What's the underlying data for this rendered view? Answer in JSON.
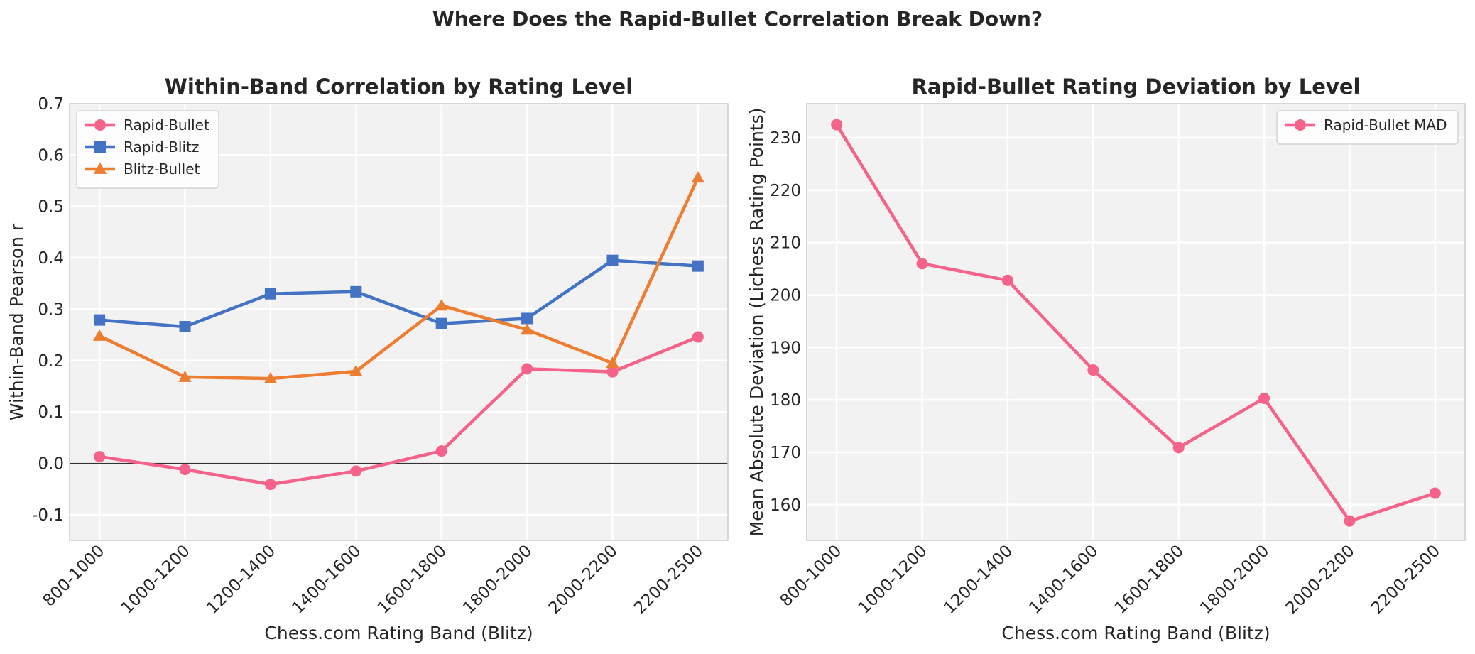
{
  "suptitle": "Where Does the Rapid-Bullet Correlation Break Down?",
  "chart_data": [
    {
      "type": "line",
      "title": "Within-Band Correlation by Rating Level",
      "xlabel": "Chess.com Rating Band (Blitz)",
      "ylabel": "Within-Band Pearson r",
      "categories": [
        "800-1000",
        "1000-1200",
        "1200-1400",
        "1400-1600",
        "1600-1800",
        "1800-2000",
        "2000-2200",
        "2200-2500"
      ],
      "ylim": [
        -0.15,
        0.7
      ],
      "yticks": [
        -0.1,
        0.0,
        0.1,
        0.2,
        0.3,
        0.4,
        0.5,
        0.6,
        0.7
      ],
      "ytick_labels": [
        "-0.1",
        "0.0",
        "0.1",
        "0.2",
        "0.3",
        "0.4",
        "0.5",
        "0.6",
        "0.7"
      ],
      "grid": true,
      "zero_line": true,
      "legend_position": "top-left",
      "series": [
        {
          "name": "Rapid-Bullet",
          "color": "#f5628a",
          "marker": "circle",
          "values": [
            0.013,
            -0.012,
            -0.041,
            -0.015,
            0.024,
            0.184,
            0.178,
            0.246
          ]
        },
        {
          "name": "Rapid-Blitz",
          "color": "#4472c4",
          "marker": "square",
          "values": [
            0.279,
            0.266,
            0.33,
            0.334,
            0.272,
            0.282,
            0.395,
            0.384
          ]
        },
        {
          "name": "Blitz-Bullet",
          "color": "#ed7d31",
          "marker": "triangle",
          "values": [
            0.248,
            0.168,
            0.165,
            0.179,
            0.307,
            0.26,
            0.195,
            0.556
          ]
        }
      ]
    },
    {
      "type": "line",
      "title": "Rapid-Bullet Rating Deviation by Level",
      "xlabel": "Chess.com Rating Band (Blitz)",
      "ylabel": "Mean Absolute Deviation (Lichess Rating Points)",
      "categories": [
        "800-1000",
        "1000-1200",
        "1200-1400",
        "1400-1600",
        "1600-1800",
        "1800-2000",
        "2000-2200",
        "2200-2500"
      ],
      "ylim": [
        153.2,
        236.5
      ],
      "yticks": [
        160,
        170,
        180,
        190,
        200,
        210,
        220,
        230
      ],
      "ytick_labels": [
        "160",
        "170",
        "180",
        "190",
        "200",
        "210",
        "220",
        "230"
      ],
      "grid": true,
      "zero_line": false,
      "legend_position": "top-right",
      "series": [
        {
          "name": "Rapid-Bullet MAD",
          "color": "#f5628a",
          "marker": "circle",
          "values": [
            232.5,
            206.0,
            202.8,
            185.7,
            170.9,
            180.3,
            156.9,
            162.2
          ]
        }
      ]
    }
  ]
}
